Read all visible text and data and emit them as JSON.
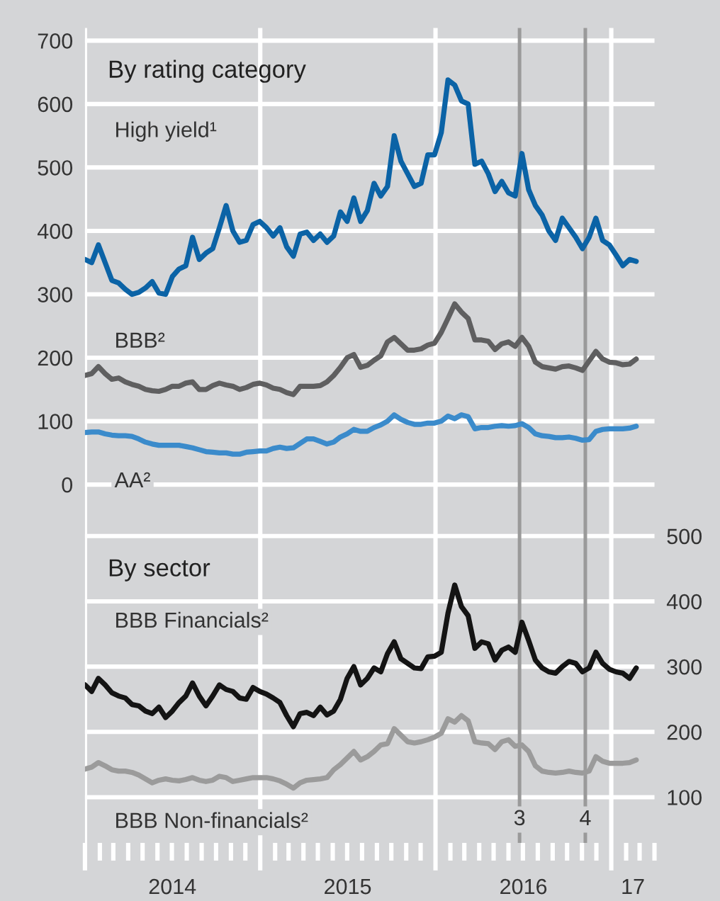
{
  "chart_data": [
    {
      "type": "line",
      "title": "By rating category",
      "x": [
        "2014-01-01",
        "2014-01-15",
        "2014-01-29",
        "2014-02-12",
        "2014-02-26",
        "2014-03-12",
        "2014-03-26",
        "2014-04-09",
        "2014-04-23",
        "2014-05-07",
        "2014-05-21",
        "2014-06-04",
        "2014-06-18",
        "2014-07-02",
        "2014-07-16",
        "2014-07-30",
        "2014-08-13",
        "2014-08-27",
        "2014-09-10",
        "2014-09-24",
        "2014-10-08",
        "2014-10-22",
        "2014-11-05",
        "2014-11-19",
        "2014-12-03",
        "2014-12-17",
        "2014-12-31",
        "2015-01-14",
        "2015-01-28",
        "2015-02-11",
        "2015-02-25",
        "2015-03-11",
        "2015-03-25",
        "2015-04-08",
        "2015-04-22",
        "2015-05-06",
        "2015-05-20",
        "2015-06-03",
        "2015-06-17",
        "2015-07-01",
        "2015-07-15",
        "2015-07-29",
        "2015-08-12",
        "2015-08-26",
        "2015-09-09",
        "2015-09-23",
        "2015-10-07",
        "2015-10-21",
        "2015-11-04",
        "2015-11-18",
        "2015-12-02",
        "2015-12-16",
        "2015-12-30",
        "2016-01-13",
        "2016-01-27",
        "2016-02-10",
        "2016-02-24",
        "2016-03-09",
        "2016-03-23",
        "2016-04-06",
        "2016-04-20",
        "2016-05-04",
        "2016-05-18",
        "2016-06-01",
        "2016-06-15",
        "2016-06-29",
        "2016-07-13",
        "2016-07-27",
        "2016-08-10",
        "2016-08-24",
        "2016-09-07",
        "2016-09-21",
        "2016-10-05",
        "2016-10-19",
        "2016-11-02",
        "2016-11-16",
        "2016-11-30",
        "2016-12-14",
        "2016-12-28",
        "2017-01-11",
        "2017-01-25",
        "2017-02-08",
        "2017-02-22"
      ],
      "series": [
        {
          "name": "High yield¹",
          "color": "#0b63a6",
          "values": [
            355,
            350,
            378,
            350,
            322,
            318,
            308,
            300,
            303,
            310,
            320,
            302,
            300,
            328,
            340,
            345,
            390,
            355,
            365,
            372,
            405,
            440,
            400,
            382,
            385,
            410,
            415,
            405,
            392,
            405,
            375,
            360,
            395,
            398,
            385,
            395,
            382,
            392,
            430,
            415,
            452,
            415,
            432,
            475,
            455,
            470,
            550,
            510,
            490,
            470,
            475,
            520,
            520,
            555,
            638,
            630,
            605,
            600,
            505,
            510,
            490,
            462,
            478,
            460,
            455,
            522,
            465,
            440,
            425,
            400,
            385,
            420,
            405,
            390,
            372,
            390,
            420,
            385,
            378,
            362,
            345,
            355,
            352
          ]
        },
        {
          "name": "BBB²",
          "color": "#5f5f60",
          "values": [
            172,
            175,
            186,
            175,
            166,
            168,
            162,
            158,
            155,
            150,
            148,
            147,
            150,
            155,
            155,
            160,
            162,
            150,
            150,
            156,
            160,
            157,
            155,
            150,
            153,
            158,
            160,
            157,
            152,
            150,
            145,
            142,
            155,
            155,
            155,
            156,
            162,
            172,
            185,
            200,
            205,
            185,
            188,
            196,
            203,
            225,
            232,
            222,
            212,
            212,
            214,
            220,
            223,
            240,
            262,
            285,
            272,
            262,
            228,
            228,
            226,
            213,
            222,
            225,
            218,
            232,
            218,
            193,
            186,
            184,
            182,
            186,
            187,
            184,
            180,
            195,
            210,
            198,
            193,
            192,
            189,
            190,
            198
          ]
        },
        {
          "name": "AA²",
          "color": "#3b8bcb",
          "values": [
            82,
            83,
            83,
            80,
            78,
            77,
            77,
            76,
            72,
            67,
            64,
            62,
            62,
            62,
            62,
            60,
            58,
            55,
            52,
            51,
            50,
            50,
            48,
            48,
            51,
            52,
            53,
            53,
            57,
            59,
            57,
            58,
            65,
            72,
            72,
            68,
            64,
            67,
            75,
            80,
            87,
            84,
            84,
            90,
            94,
            100,
            110,
            103,
            98,
            95,
            95,
            97,
            97,
            100,
            108,
            104,
            110,
            107,
            88,
            90,
            90,
            92,
            93,
            92,
            93,
            96,
            90,
            80,
            77,
            76,
            74,
            74,
            75,
            73,
            70,
            71,
            84,
            87,
            88,
            88,
            88,
            89,
            92
          ]
        }
      ],
      "xlim": [
        "2014-01-01",
        "2017-04-01"
      ],
      "ylim": [
        -40,
        720
      ],
      "yticks": [
        0,
        100,
        200,
        300,
        400,
        500,
        600,
        700
      ],
      "grid": true,
      "legend": false,
      "tick_labels": "y",
      "line_style": "solid",
      "marker": "none",
      "ref_lines": [
        {
          "axis": "x",
          "value": "2016-06-24",
          "label": null,
          "color": "#9a9a9a"
        },
        {
          "axis": "x",
          "value": "2016-11-08",
          "label": null,
          "color": "#9a9a9a"
        }
      ]
    },
    {
      "type": "line",
      "title": "By sector",
      "x": [
        "2014-01-01",
        "2014-01-15",
        "2014-01-29",
        "2014-02-12",
        "2014-02-26",
        "2014-03-12",
        "2014-03-26",
        "2014-04-09",
        "2014-04-23",
        "2014-05-07",
        "2014-05-21",
        "2014-06-04",
        "2014-06-18",
        "2014-07-02",
        "2014-07-16",
        "2014-07-30",
        "2014-08-13",
        "2014-08-27",
        "2014-09-10",
        "2014-09-24",
        "2014-10-08",
        "2014-10-22",
        "2014-11-05",
        "2014-11-19",
        "2014-12-03",
        "2014-12-17",
        "2014-12-31",
        "2015-01-14",
        "2015-01-28",
        "2015-02-11",
        "2015-02-25",
        "2015-03-11",
        "2015-03-25",
        "2015-04-08",
        "2015-04-22",
        "2015-05-06",
        "2015-05-20",
        "2015-06-03",
        "2015-06-17",
        "2015-07-01",
        "2015-07-15",
        "2015-07-29",
        "2015-08-12",
        "2015-08-26",
        "2015-09-09",
        "2015-09-23",
        "2015-10-07",
        "2015-10-21",
        "2015-11-04",
        "2015-11-18",
        "2015-12-02",
        "2015-12-16",
        "2015-12-30",
        "2016-01-13",
        "2016-01-27",
        "2016-02-10",
        "2016-02-24",
        "2016-03-09",
        "2016-03-23",
        "2016-04-06",
        "2016-04-20",
        "2016-05-04",
        "2016-05-18",
        "2016-06-01",
        "2016-06-15",
        "2016-06-29",
        "2016-07-13",
        "2016-07-27",
        "2016-08-10",
        "2016-08-24",
        "2016-09-07",
        "2016-09-21",
        "2016-10-05",
        "2016-10-19",
        "2016-11-02",
        "2016-11-16",
        "2016-11-30",
        "2016-12-14",
        "2016-12-28",
        "2017-01-11",
        "2017-01-25",
        "2017-02-08",
        "2017-02-22"
      ],
      "series": [
        {
          "name": "BBB Financials²",
          "color": "#141414",
          "values": [
            272,
            262,
            282,
            272,
            260,
            255,
            252,
            242,
            240,
            232,
            228,
            238,
            222,
            232,
            245,
            255,
            275,
            255,
            240,
            255,
            272,
            265,
            262,
            252,
            250,
            268,
            262,
            258,
            252,
            245,
            225,
            208,
            228,
            230,
            225,
            238,
            226,
            232,
            250,
            282,
            300,
            272,
            282,
            298,
            292,
            320,
            338,
            312,
            305,
            298,
            297,
            315,
            316,
            322,
            382,
            425,
            392,
            378,
            328,
            338,
            335,
            310,
            325,
            330,
            322,
            368,
            340,
            310,
            298,
            292,
            290,
            300,
            308,
            305,
            292,
            298,
            322,
            305,
            296,
            292,
            290,
            282,
            298
          ]
        },
        {
          "name": "BBB Non-financials²",
          "color": "#9b9b9b",
          "values": [
            143,
            146,
            153,
            148,
            142,
            140,
            140,
            138,
            134,
            128,
            122,
            126,
            128,
            126,
            125,
            127,
            130,
            126,
            124,
            126,
            132,
            130,
            124,
            126,
            128,
            130,
            130,
            130,
            128,
            125,
            120,
            114,
            122,
            126,
            127,
            128,
            130,
            142,
            150,
            160,
            170,
            157,
            162,
            170,
            180,
            182,
            205,
            195,
            185,
            183,
            185,
            188,
            192,
            198,
            220,
            215,
            225,
            217,
            185,
            183,
            182,
            173,
            185,
            188,
            178,
            180,
            170,
            148,
            140,
            138,
            137,
            138,
            140,
            138,
            137,
            140,
            162,
            155,
            152,
            152,
            152,
            153,
            157
          ]
        }
      ],
      "xlim": [
        "2014-01-01",
        "2017-04-01"
      ],
      "ylim": [
        30,
        540
      ],
      "yticks": [
        100,
        200,
        300,
        400,
        500
      ],
      "xticks": [
        {
          "value": "2014-01-01",
          "label": null
        },
        {
          "value": "2014-02-01",
          "label": null
        },
        {
          "value": "2014-03-01",
          "label": null
        },
        {
          "value": "2014-04-01",
          "label": null
        },
        {
          "value": "2014-05-01",
          "label": null
        },
        {
          "value": "2014-06-01",
          "label": null
        },
        {
          "value": "2014-07-01",
          "label": null
        },
        {
          "value": "2014-08-01",
          "label": null
        },
        {
          "value": "2014-09-01",
          "label": null
        },
        {
          "value": "2014-10-01",
          "label": null
        },
        {
          "value": "2014-11-01",
          "label": null
        },
        {
          "value": "2014-12-01",
          "label": null
        },
        {
          "value": "2015-01-01",
          "label": null
        },
        {
          "value": "2015-02-01",
          "label": null
        },
        {
          "value": "2015-03-01",
          "label": null
        },
        {
          "value": "2015-04-01",
          "label": null
        },
        {
          "value": "2015-05-01",
          "label": null
        },
        {
          "value": "2015-06-01",
          "label": null
        },
        {
          "value": "2015-07-01",
          "label": null
        },
        {
          "value": "2015-08-01",
          "label": null
        },
        {
          "value": "2015-09-01",
          "label": null
        },
        {
          "value": "2015-10-01",
          "label": null
        },
        {
          "value": "2015-11-01",
          "label": null
        },
        {
          "value": "2015-12-01",
          "label": null
        },
        {
          "value": "2016-01-01",
          "label": null
        },
        {
          "value": "2016-02-01",
          "label": null
        },
        {
          "value": "2016-03-01",
          "label": null
        },
        {
          "value": "2016-04-01",
          "label": null
        },
        {
          "value": "2016-05-01",
          "label": null
        },
        {
          "value": "2016-06-01",
          "label": null
        },
        {
          "value": "2016-07-01",
          "label": null
        },
        {
          "value": "2016-08-01",
          "label": null
        },
        {
          "value": "2016-09-01",
          "label": null
        },
        {
          "value": "2016-10-01",
          "label": null
        },
        {
          "value": "2016-11-01",
          "label": null
        },
        {
          "value": "2016-12-01",
          "label": null
        },
        {
          "value": "2017-01-01",
          "label": null
        },
        {
          "value": "2017-02-01",
          "label": null
        },
        {
          "value": "2017-03-01",
          "label": null
        },
        {
          "value": "2017-04-01",
          "label": null
        },
        {
          "value": "2014-07-02",
          "label": "2014"
        },
        {
          "value": "2015-07-02",
          "label": "2015"
        },
        {
          "value": "2016-07-02",
          "label": "2016"
        },
        {
          "value": "2017-02-15",
          "label": "17"
        }
      ],
      "grid": true,
      "legend": false,
      "line_style": "solid",
      "marker": "none",
      "ref_lines": [
        {
          "axis": "x",
          "value": "2016-06-24",
          "label": "3",
          "color": "#9a9a9a"
        },
        {
          "axis": "x",
          "value": "2016-11-08",
          "label": "4",
          "color": "#9a9a9a"
        }
      ]
    }
  ]
}
